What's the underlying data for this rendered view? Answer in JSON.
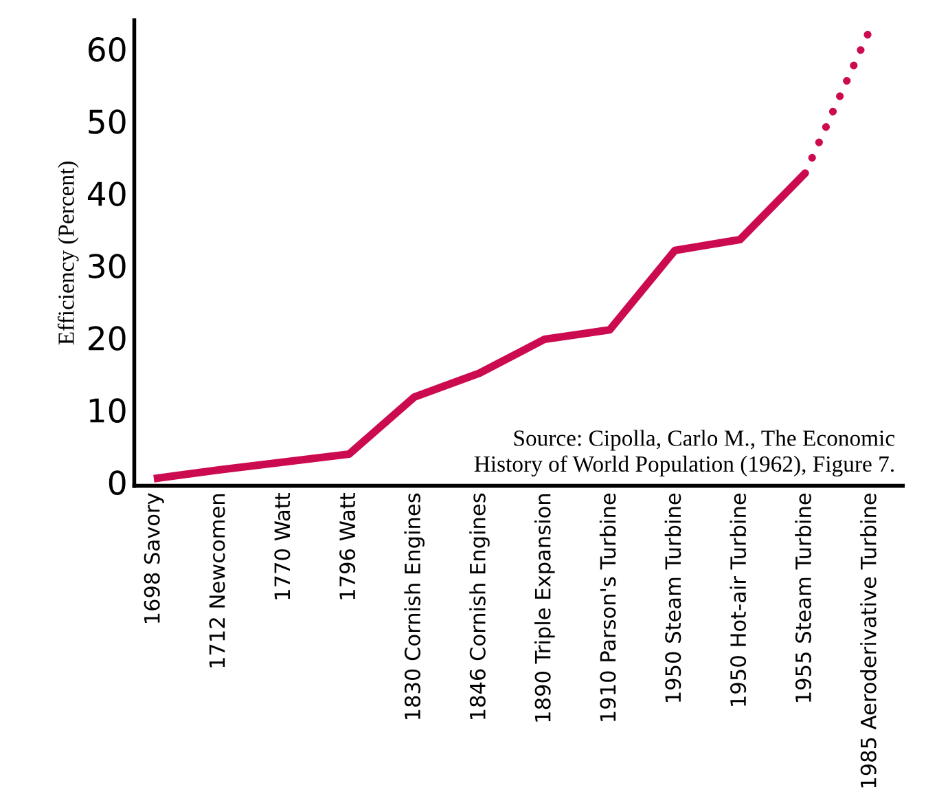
{
  "chart_data": {
    "type": "line",
    "ylabel": "Efficiency (Percent)",
    "categories": [
      "1698 Savory",
      "1712 Newcomen",
      "1770 Watt",
      "1796 Watt",
      "1830 Cornish Engines",
      "1846 Cornish Engines",
      "1890 Triple Expansion",
      "1910 Parson's Turbine",
      "1950 Steam Turbine",
      "1950 Hot-air Turbine",
      "1955 Steam Turbine",
      "1985 Aeroderivative Turbine"
    ],
    "series": [
      {
        "color": "#cc0a50",
        "line_style": "solid",
        "values": [
          0.5,
          1.7,
          2.8,
          3.9,
          11.8,
          15.1,
          19.8,
          21.1,
          32.1,
          33.6,
          42.8,
          null
        ]
      },
      {
        "color": "#cc0a50",
        "line_style": "dotted",
        "values": [
          null,
          null,
          null,
          null,
          null,
          null,
          null,
          null,
          null,
          null,
          42.8,
          62.8
        ]
      }
    ],
    "ylim": [
      -0.5,
      64
    ],
    "yticks": [
      0,
      10,
      20,
      30,
      40,
      50,
      60
    ],
    "grid": false,
    "legend": false,
    "marker": "none",
    "annotations": [
      "Source: Cipolla, Carlo M., The Economic\nHistory of World Population (1962), Figure 7."
    ]
  }
}
